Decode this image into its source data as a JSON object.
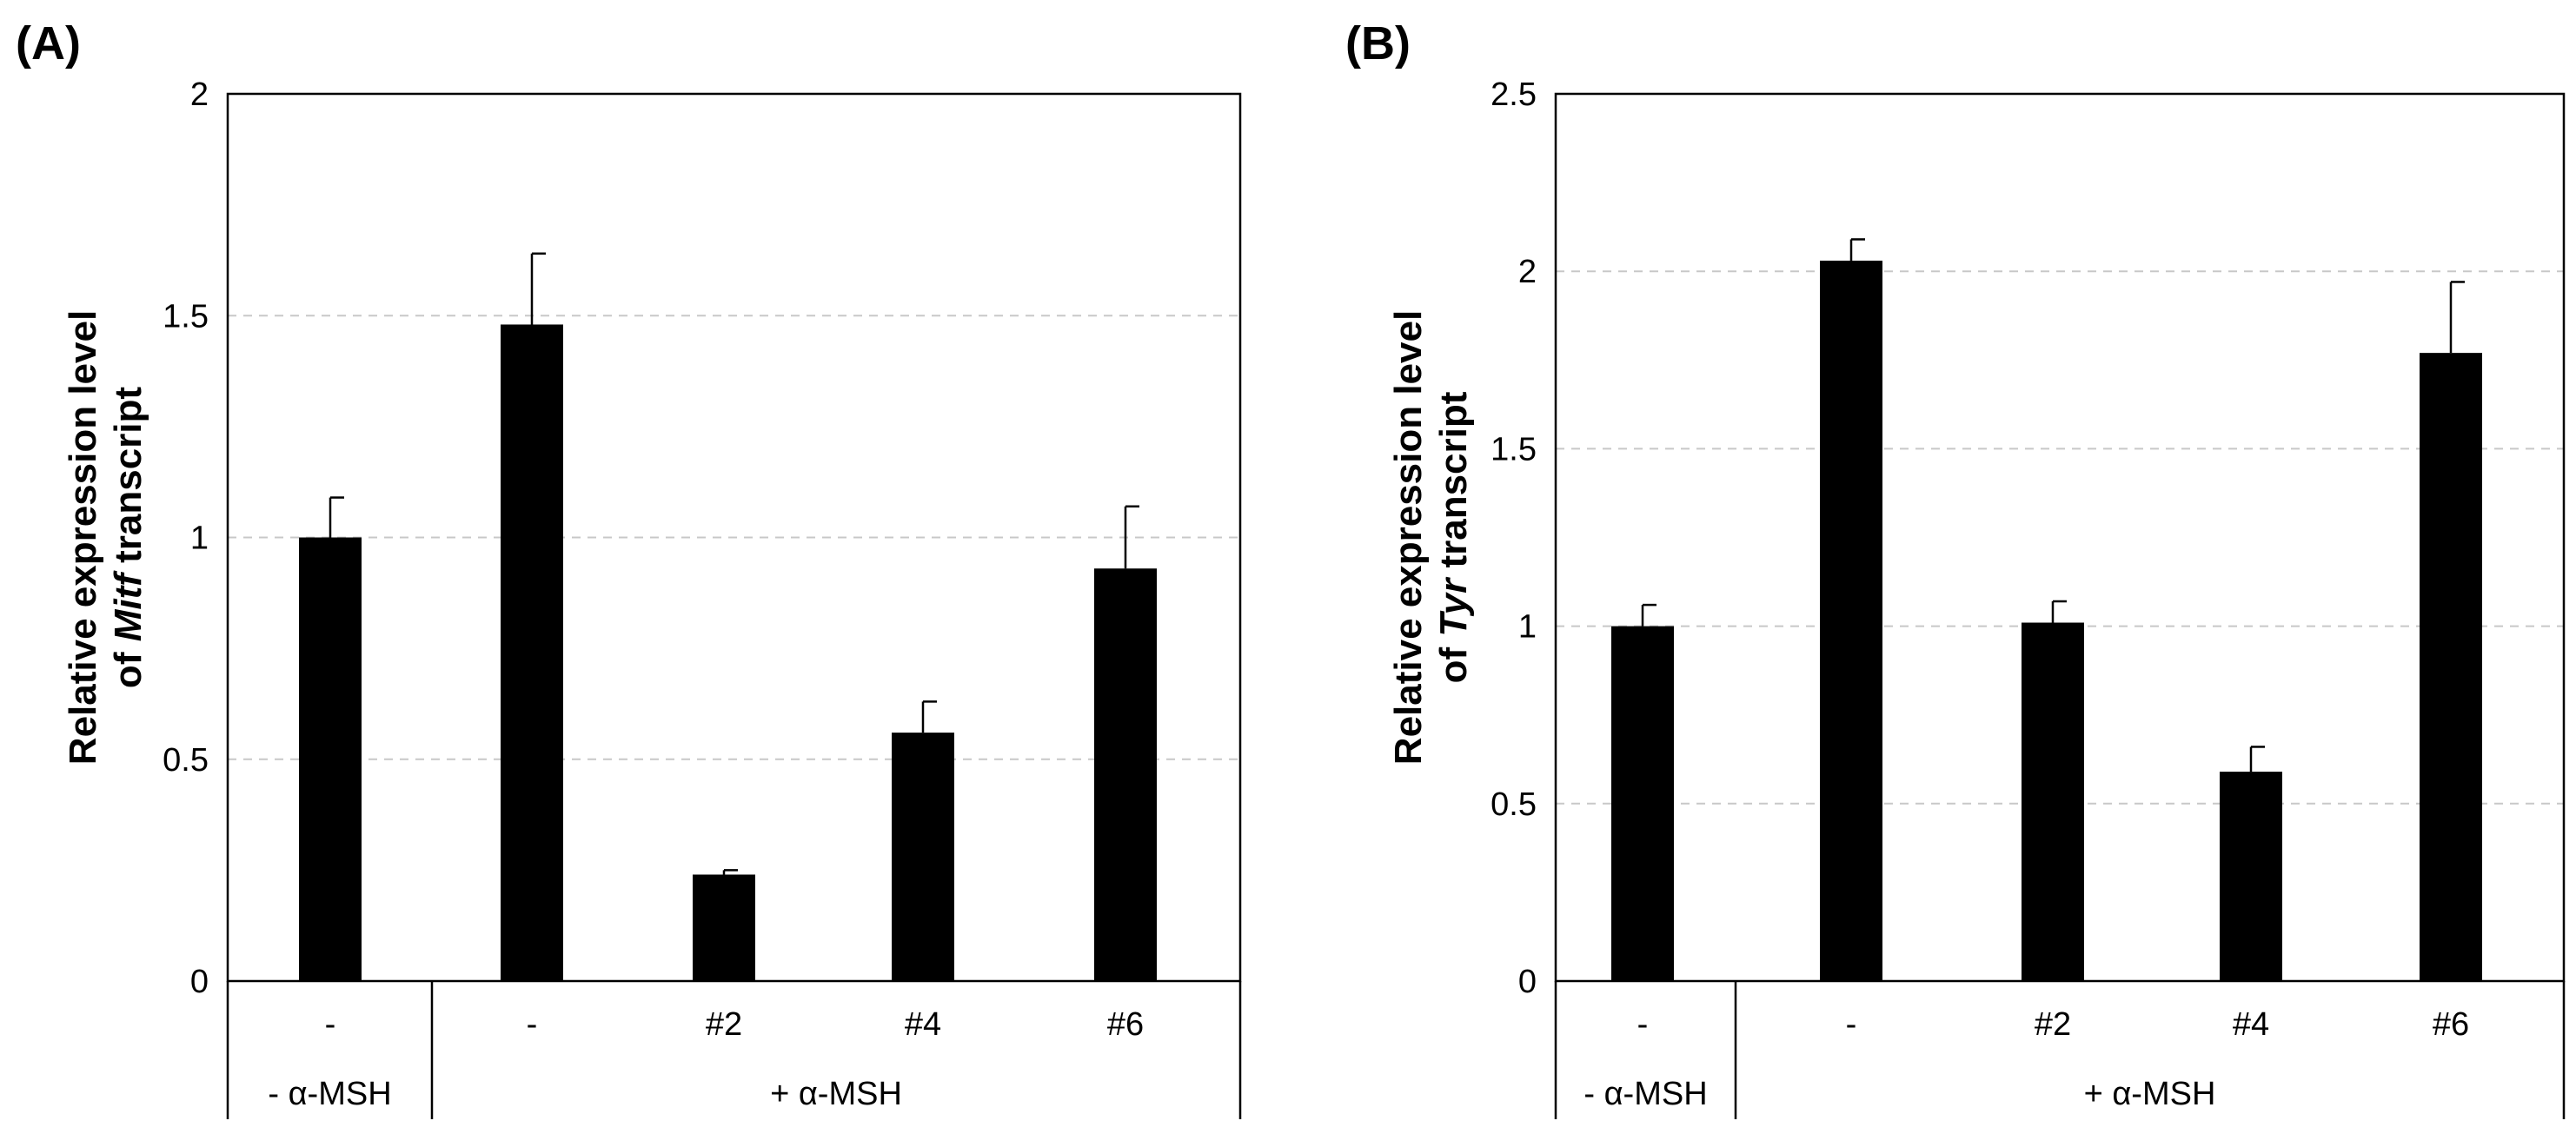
{
  "chart_data": [
    {
      "type": "bar",
      "panel_label": "(A)",
      "categories": [
        "-",
        "-",
        "#2",
        "#4",
        "#6"
      ],
      "values": [
        1.0,
        1.48,
        0.24,
        0.56,
        0.93
      ],
      "errors": [
        0.09,
        0.16,
        0.01,
        0.07,
        0.14
      ],
      "groups": [
        {
          "label": "- α-MSH",
          "span": [
            0,
            0
          ]
        },
        {
          "label": "+ α-MSH",
          "span": [
            1,
            4
          ]
        }
      ],
      "ylabel_line1": "Relative expression level",
      "ylabel_line2_prefix": "of ",
      "ylabel_gene": "Mitf",
      "ylabel_line2_suffix": " transcript",
      "ylim": [
        0,
        2
      ],
      "yticks": [
        0,
        0.5,
        1,
        1.5,
        2
      ],
      "ytick_labels": [
        "0",
        "0.5",
        "1",
        "1.5",
        "2"
      ],
      "grid": true
    },
    {
      "type": "bar",
      "panel_label": "(B)",
      "categories": [
        "-",
        "-",
        "#2",
        "#4",
        "#6"
      ],
      "values": [
        1.0,
        2.03,
        1.01,
        0.59,
        1.77
      ],
      "errors": [
        0.06,
        0.06,
        0.06,
        0.07,
        0.2
      ],
      "groups": [
        {
          "label": "- α-MSH",
          "span": [
            0,
            0
          ]
        },
        {
          "label": "+ α-MSH",
          "span": [
            1,
            4
          ]
        }
      ],
      "ylabel_line1": "Relative expression level",
      "ylabel_line2_prefix": "of ",
      "ylabel_gene": "Tyr",
      "ylabel_line2_suffix": " transcript",
      "ylim": [
        0,
        2.5
      ],
      "yticks": [
        0,
        0.5,
        1,
        1.5,
        2,
        2.5
      ],
      "ytick_labels": [
        "0",
        "0.5",
        "1",
        "1.5",
        "2",
        "2.5"
      ],
      "grid": true
    }
  ]
}
